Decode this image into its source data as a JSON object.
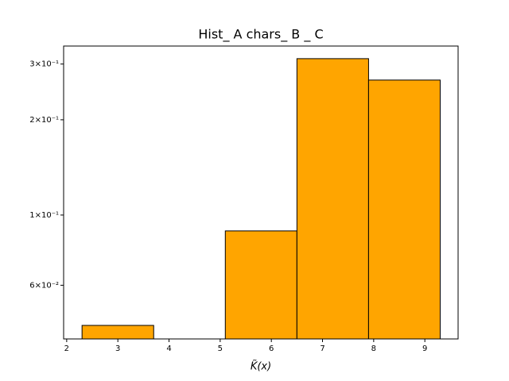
{
  "chart_data": {
    "type": "histogram",
    "title": "Hist_ A chars_ B _ C",
    "xlabel": "K̃(x)",
    "bins": [
      2.3,
      3.7,
      5.1,
      6.5,
      7.9,
      9.3
    ],
    "values": [
      0.0448,
      0,
      0.0891,
      0.312,
      0.267
    ],
    "color": "#ffa500",
    "edgecolor": "#000000",
    "xlim": [
      1.94,
      9.65
    ],
    "xticks": [
      2,
      3,
      4,
      5,
      6,
      7,
      8,
      9
    ],
    "ylim": [
      0.0406,
      0.342
    ],
    "log_y": true,
    "yticks": [
      {
        "value": 0.06,
        "label": "6×10⁻²"
      },
      {
        "value": 0.1,
        "label": "1×10⁻¹"
      },
      {
        "value": 0.2,
        "label": "2×10⁻¹"
      },
      {
        "value": 0.3,
        "label": "3×10⁻¹"
      }
    ]
  }
}
